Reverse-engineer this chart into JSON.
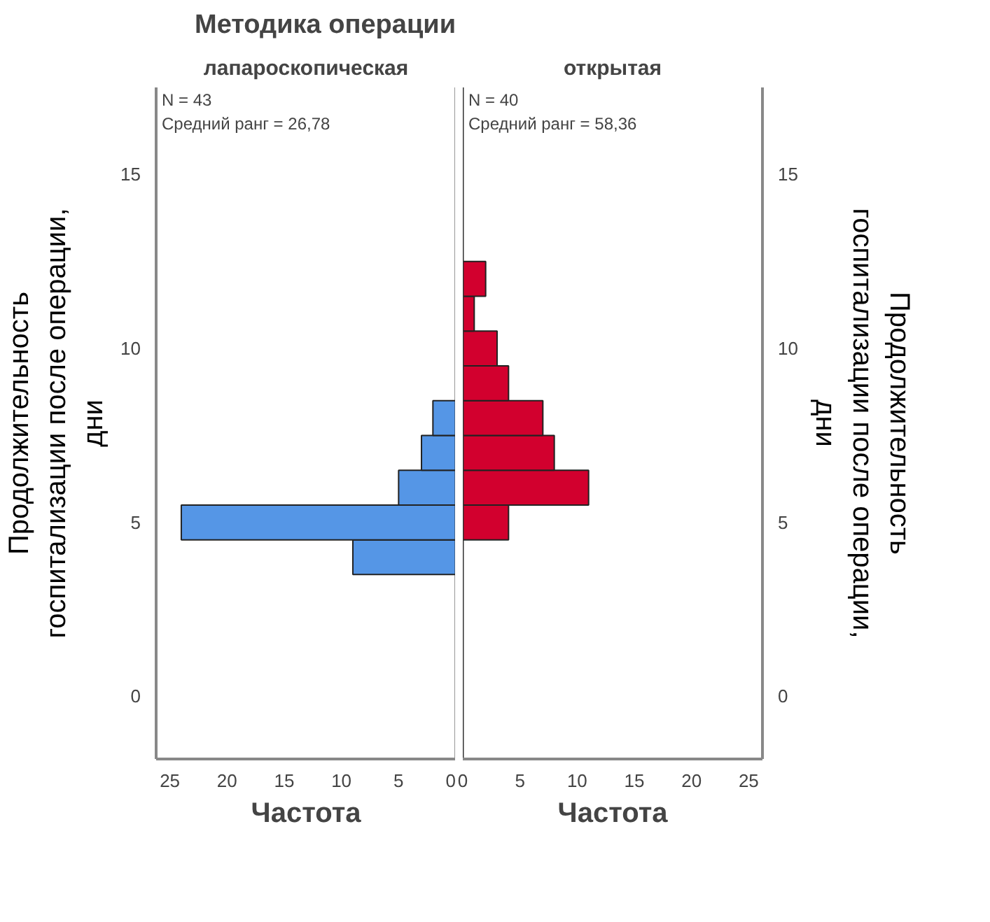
{
  "chart_data": [
    {
      "type": "histogram",
      "title": "Методика операции",
      "subtitle": "лапароскопическая",
      "orientation": "horizontal",
      "color": "#5596e6",
      "bins": [
        3.5,
        4.5,
        5.5,
        6.5,
        7.5,
        8.5,
        9.5,
        10.5,
        11.5,
        12.5
      ],
      "values": [
        9,
        24,
        5,
        3,
        2,
        0,
        0,
        0,
        0
      ],
      "xlim": [
        26.2,
        0
      ],
      "xticks": [
        25,
        20,
        15,
        10,
        5,
        0
      ],
      "ylim": [
        -1.8,
        17.5
      ],
      "yticks": [
        0,
        5,
        10,
        15
      ],
      "xlabel": "Частота",
      "ylabel": "Продолжительность госпитализации после операции, дни",
      "annotations": [
        "N = 43",
        "Средний ранг = 26,78"
      ],
      "grid": false
    },
    {
      "type": "histogram",
      "subtitle": "открытая",
      "orientation": "horizontal",
      "color": "#d2002e",
      "bins": [
        3.5,
        4.5,
        5.5,
        6.5,
        7.5,
        8.5,
        9.5,
        10.5,
        11.5,
        12.5
      ],
      "values": [
        0,
        4,
        11,
        8,
        7,
        4,
        3,
        1,
        2
      ],
      "xlim": [
        0,
        26.2
      ],
      "xticks": [
        0,
        5,
        10,
        15,
        20,
        25
      ],
      "ylim": [
        -1.8,
        17.5
      ],
      "yticks": [
        0,
        5,
        10,
        15
      ],
      "xlabel": "Частота",
      "ylabel": "Продолжительность госпитализации после операции, дни",
      "annotations": [
        "N = 40",
        "Средний ранг = 58,36"
      ],
      "grid": false
    }
  ]
}
